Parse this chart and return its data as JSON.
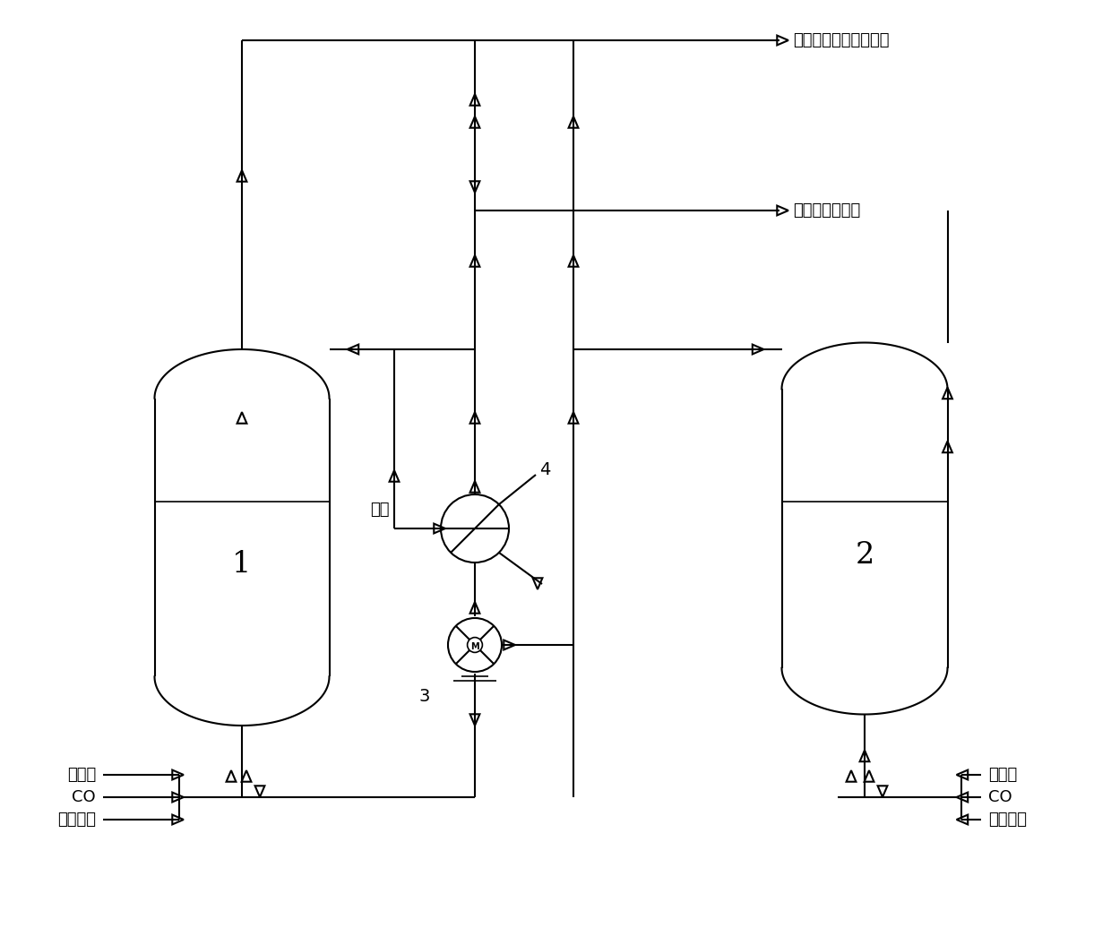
{
  "bg_color": "#ffffff",
  "lc": "#000000",
  "lw": 1.5,
  "text_gas": "气相至冷凝、净化系统",
  "text_product": "产物至精馏系统",
  "text_steam": "蔭汽",
  "text_4": "4",
  "text_3": "3",
  "text_1": "1",
  "text_2": "2",
  "text_catalyst": "催化剂",
  "text_co": "CO",
  "text_maoh": "醒酸甲酯",
  "font_label": 13,
  "font_num": 22
}
